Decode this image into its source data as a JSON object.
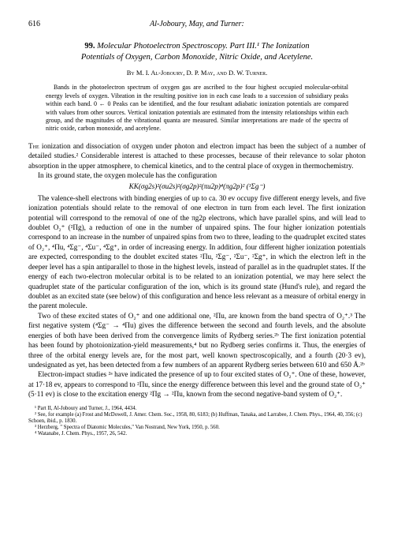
{
  "page_number": "616",
  "running_head": "Al-Joboury, May, and Turner:",
  "article_number": "99.",
  "title_line1": "Molecular Photoelectron Spectroscopy. Part III.¹ The Ionization",
  "title_line2": "Potentials of Oxygen, Carbon Monoxide, Nitric Oxide, and Acetylene.",
  "authors": "By M. I. Al-Joboury, D. P. May, and D. W. Turner.",
  "abstract_p1": "Bands in the photoelectron spectrum of oxygen gas are ascribed to the four highest occupied molecular-orbital energy levels of oxygen. Vibration in the resulting positive ion in each case leads to a succession of subsidiary peaks within each band. 0 ← 0 Peaks can be identified, and the four resultant adiabatic ionization potentials are compared with values from other sources. Vertical ionization potentials are estimated from the intensity relationships within each group, and the magnitudes of the vibrational quanta are measured. Similar interpretations are made of the spectra of nitric oxide, carbon monoxide, and acetylene.",
  "para1": "The ionization and dissociation of oxygen under photon and electron impact has been the subject of a number of detailed studies.² Considerable interest is attached to these processes, because of their relevance to solar photon absorption in the upper atmosphere, to chemical kinetics, and to the central place of oxygen in thermochemistry.",
  "para2": "In its ground state, the oxygen molecule has the configuration",
  "formula": "KK(σg2s)²(σu2s)²(σg2p)²(πu2p)⁴(πg2p)² (³Σg⁻)",
  "para3": "The valence-shell electrons with binding energies of up to ca. 30 ev occupy five different energy levels, and five ionization potentials should relate to the removal of one electron in turn from each level. The first ionization potential will correspond to the removal of one of the πg2p electrons, which have parallel spins, and will lead to doublet O₂⁺ (²Πg), a reduction of one in the number of unpaired spins. The four higher ionization potentials correspond to an increase in the number of unpaired spins from two to three, leading to the quadruplet excited states of O₂⁺, ⁴Πu, ⁴Σg⁻, ⁴Σu⁻, ⁴Σg⁺, in order of increasing energy. In addition, four different higher ionization potentials are expected, corresponding to the doublet excited states ²Πu, ²Σg⁻, ²Σu⁻, ²Σg⁺, in which the electron left in the deeper level has a spin antiparallel to those in the highest levels, instead of parallel as in the quadruplet states. If the energy of each two-electron molecular orbital is to be related to an ionization potential, we may here select the quadruplet state of the particular configuration of the ion, which is its ground state (Hund's rule), and regard the doublet as an excited state (see below) of this configuration and hence less relevant as a measure of orbital energy in the parent molecule.",
  "para4": "Two of these excited states of O₂⁺ and one additional one, ²Πu, are known from the band spectra of O₂⁺.³ The first negative system (⁴Σg⁻ → ⁴Πu) gives the difference between the second and fourth levels, and the absolute energies of both have been derived from the convergence limits of Rydberg series.²ᵇ The first ionization potential has been found by photoionization-yield measurements,⁴ but no Rydberg series confirms it. Thus, the energies of three of the orbital energy levels are, for the most part, well known spectroscopically, and a fourth (20·3 ev), undesignated as yet, has been detected from a few numbers of an apparent Rydberg series between 610 and 650 Å.²ᵇ",
  "para5": "Electron-impact studies ²ᵃ have indicated the presence of up to four excited states of O₂⁺. One of these, however, at 17·18 ev, appears to correspond to ²Πu, since the energy difference between this level and the ground state of O₂⁺ (5·11 ev) is close to the excitation energy ²Πg → ²Πu, known from the second negative-band system of O₂⁺.",
  "fn1": "¹ Part II, Al-Joboury and Turner, J., 1964, 4434.",
  "fn2": "² See, for example (a) Frost and McDowell, J. Amer. Chem. Soc., 1958, 80, 6183; (b) Huffman, Tanaka, and Larrabee, J. Chem. Phys., 1964, 40, 356; (c) Schoen, ibid., p. 1830.",
  "fn3": "³ Herzberg, \" Spectra of Diatomic Molecules,\" Van Nostrand, New York, 1950, p. 560.",
  "fn4": "⁴ Watanabe, J. Chem. Phys., 1957, 26, 542."
}
